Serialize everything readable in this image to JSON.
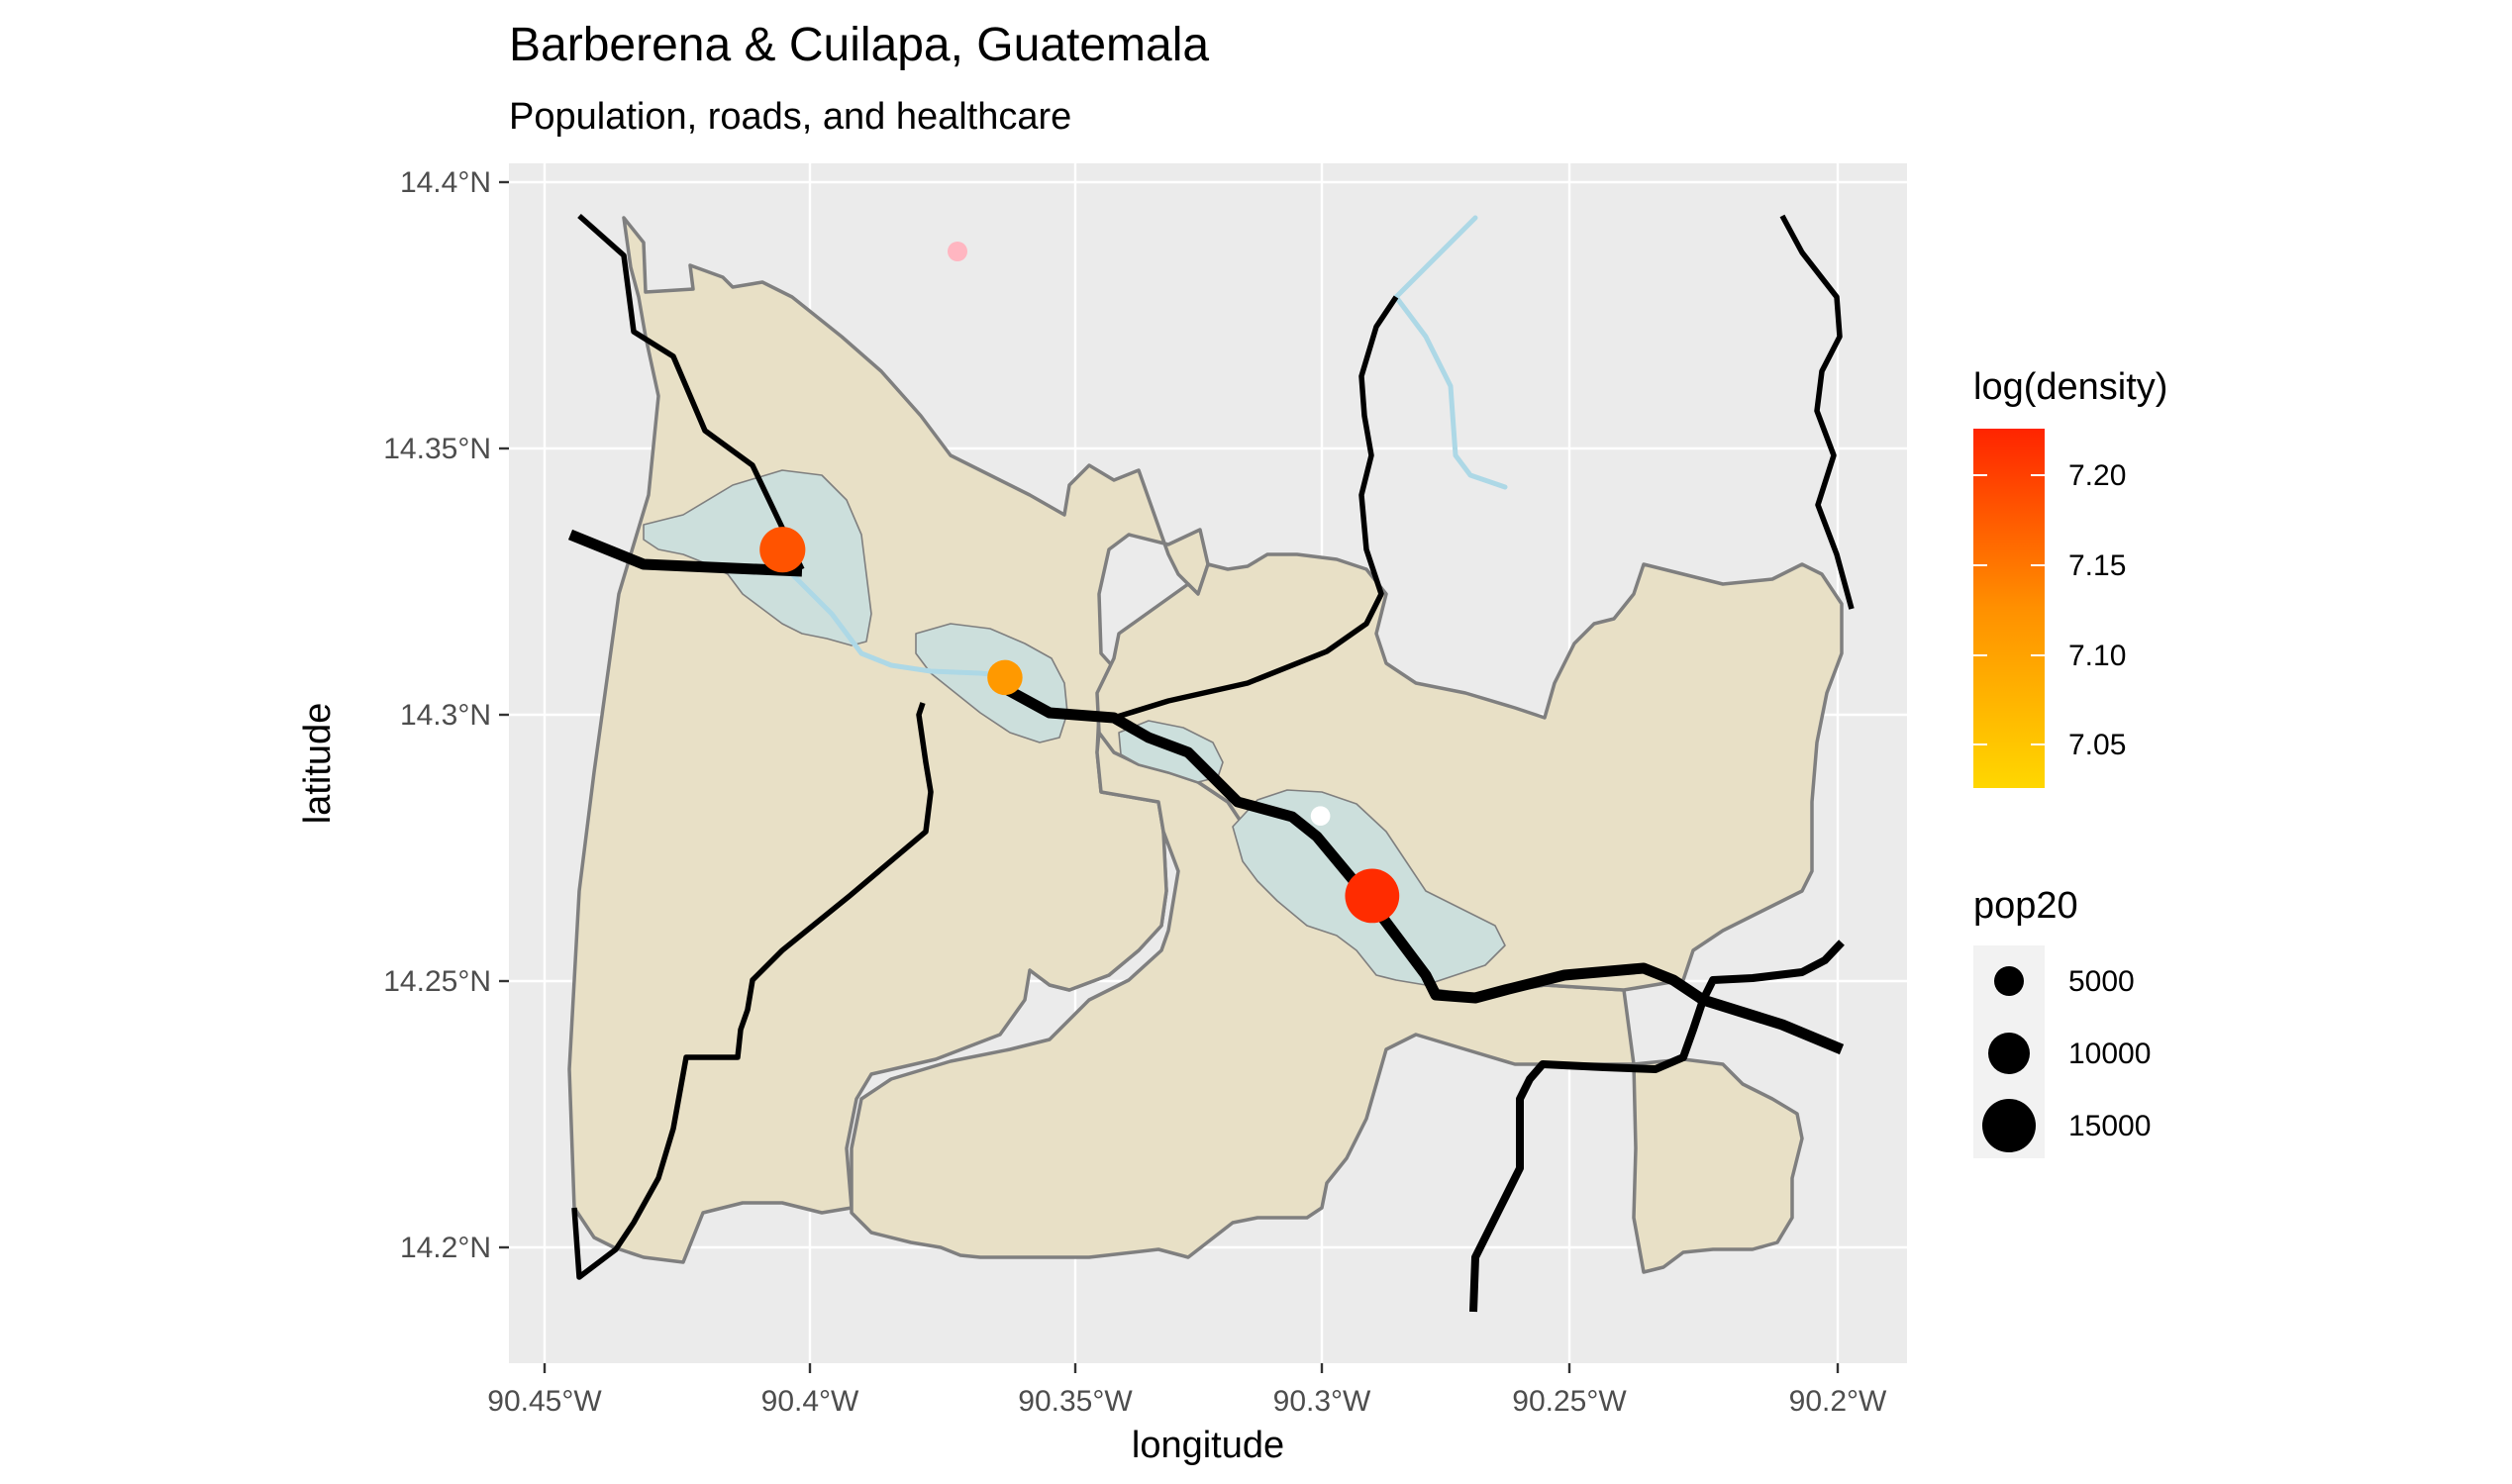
{
  "title": "Barberena & Cuilapa, Guatemala",
  "subtitle": "Population, roads, and healthcare",
  "x_axis": {
    "label": "longitude",
    "ticks": [
      "90.45°W",
      "90.4°W",
      "90.35°W",
      "90.3°W",
      "90.25°W",
      "90.2°W"
    ]
  },
  "y_axis": {
    "label": "latitude",
    "ticks": [
      "14.4°N",
      "14.35°N",
      "14.3°N",
      "14.25°N",
      "14.2°N"
    ]
  },
  "legend_density": {
    "title": "log(density)",
    "labels": [
      "7.20",
      "7.15",
      "7.10",
      "7.05"
    ],
    "color_low": "#FFD700",
    "color_high": "#FF2400"
  },
  "legend_pop": {
    "title": "pop20",
    "labels": [
      "5000",
      "10000",
      "15000"
    ]
  },
  "colors": {
    "panel_background": "#EBEBEB",
    "grid": "#FFFFFF",
    "municipality_fill": "#E8E0C6",
    "municipality_stroke": "#7F7F7F",
    "urban_fill": "#CCDFDC",
    "roads": "#000000",
    "river": "#ADD8E6",
    "healthcare_point": "#FFB6C1"
  },
  "chart_data": {
    "type": "map",
    "xlim": [
      -90.45,
      -90.2
    ],
    "ylim": [
      14.2,
      14.4
    ],
    "settlements": [
      {
        "lon": -90.404,
        "lat": 14.331,
        "pop20": 11000,
        "log_density": 7.17
      },
      {
        "lon": -90.361,
        "lat": 14.307,
        "pop20": 6500,
        "log_density": 7.08
      },
      {
        "lon": -90.29,
        "lat": 14.266,
        "pop20": 15500,
        "log_density": 7.22
      },
      {
        "lon": -90.3,
        "lat": 14.281,
        "pop20": 2000,
        "log_density": 7.0
      }
    ],
    "healthcare": [
      {
        "lon": -90.371,
        "lat": 14.387
      }
    ]
  }
}
